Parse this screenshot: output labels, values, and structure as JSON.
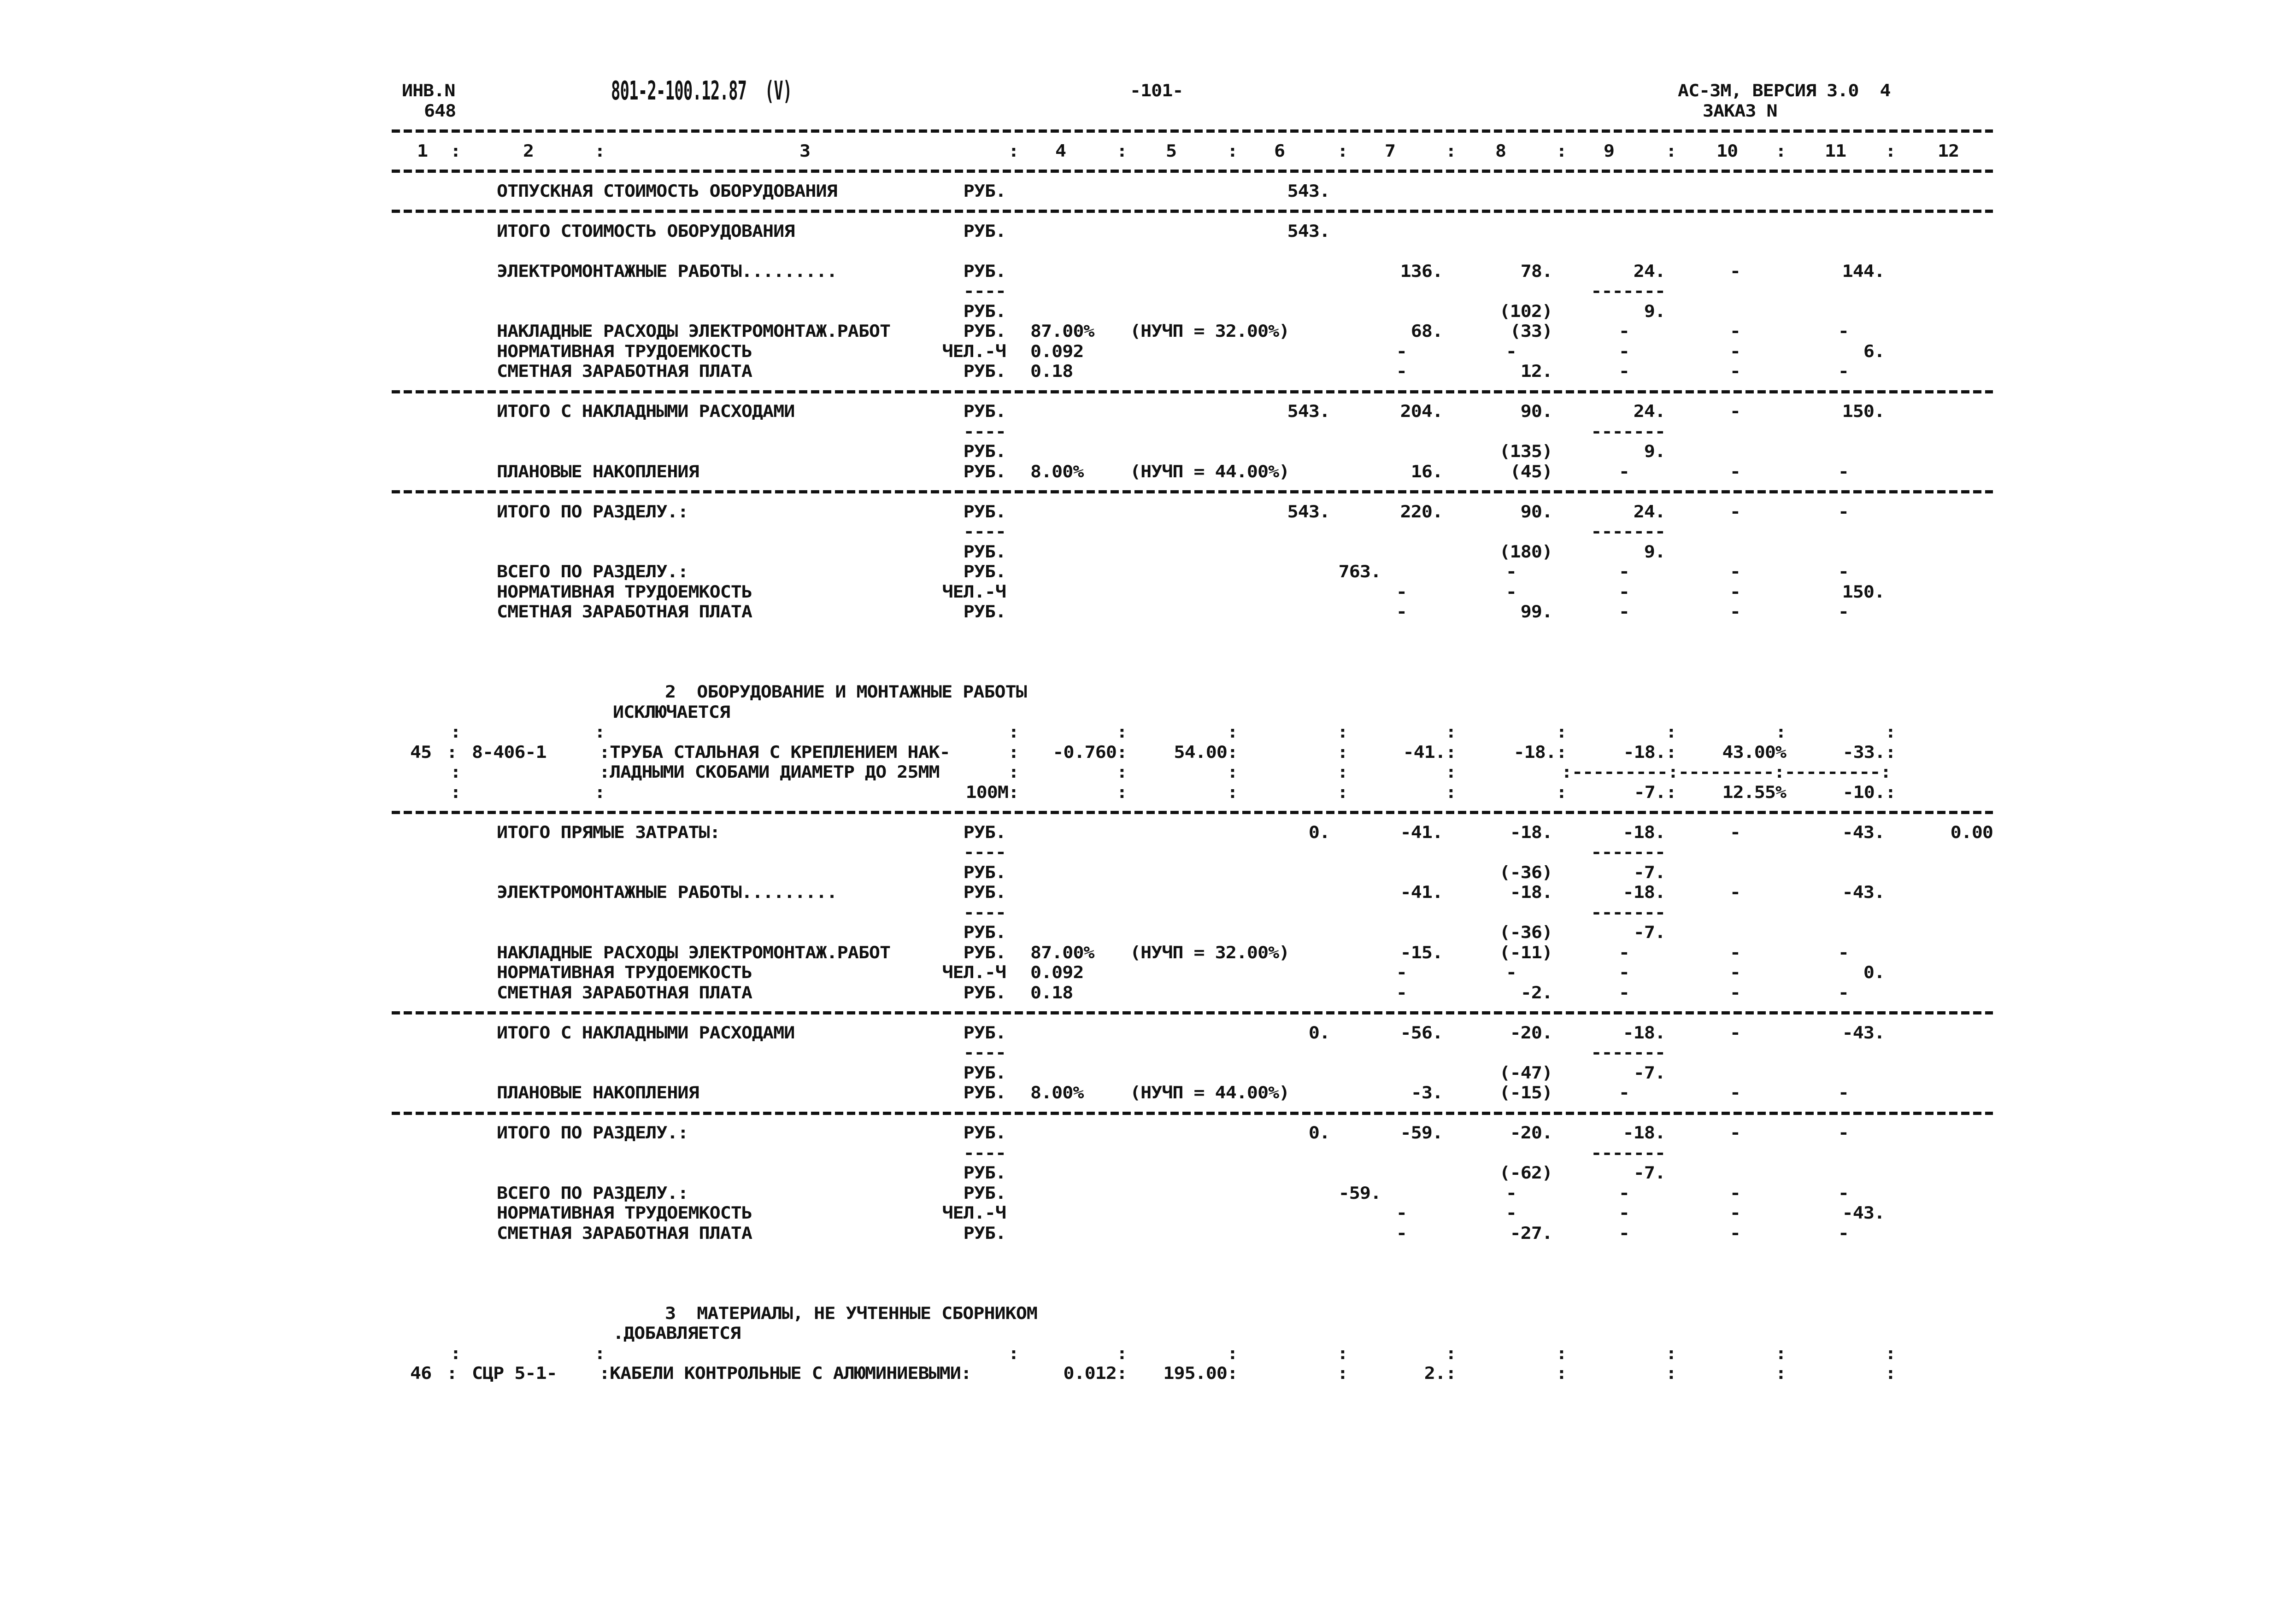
{
  "document": {
    "rows": [
      {
        "c": {
          "hinv": "ИНВ.N",
          "hdoc": "801-2-100.12.87  (V)",
          "hpage": "-101-",
          "hver": "АС-3М, ВЕРСИЯ 3.0  4"
        }
      },
      {
        "c": {
          "hinv2": "648",
          "horder": "ЗАКАЗ N"
        }
      },
      {
        "t": "dash"
      },
      {
        "c": {
          "h1": "1",
          "s1": ":",
          "h2": "2",
          "s2": ":",
          "h3": "3",
          "s3": ":",
          "h4": "4",
          "s4": ":",
          "h5": "5",
          "s5": ":",
          "h6": "6",
          "s6": ":",
          "h7": "7",
          "s7": ":",
          "h8": "8",
          "s8": ":",
          "h9": "9",
          "s9": ":",
          "h10": "10",
          "s10": ":",
          "h11": "11",
          "s11": ":",
          "h12": "12"
        }
      },
      {
        "t": "dash"
      },
      {
        "c": {
          "label": "ОТПУСКНАЯ СТОИМОСТЬ ОБОРУДОВАНИЯ",
          "unit": "РУБ.",
          "c6": "543."
        }
      },
      {
        "t": "dash"
      },
      {
        "c": {
          "label": "ИТОГО СТОИМОСТЬ ОБОРУДОВАНИЯ",
          "unit": "РУБ.",
          "c6": "543."
        }
      },
      {},
      {
        "c": {
          "label": "ЭЛЕКТРОМОНТАЖНЫЕ РАБОТЫ.........",
          "unit": "РУБ.",
          "c7": "136.",
          "c8": "78.",
          "c9": "24.",
          "c10": "-",
          "c11": "144."
        }
      },
      {
        "c": {
          "unit": "----",
          "c9": "-------"
        }
      },
      {
        "c": {
          "unit": "РУБ.",
          "c8": "(102)",
          "c9": "9."
        }
      },
      {
        "c": {
          "label": "НАКЛАДНЫЕ РАСХОДЫ ЭЛЕКТРОМОНТАЖ.РАБОТ",
          "unit": "РУБ.",
          "c4": "87.00%",
          "c5n": "(НУЧП = 32.00%)",
          "c7": "68.",
          "c8": "(33)",
          "c9": "-",
          "c10": "-",
          "c11": "-"
        }
      },
      {
        "c": {
          "label": "НОРМАТИВНАЯ ТРУДОЕМКОСТЬ",
          "unit": "ЧЕЛ.-Ч",
          "c4": "0.092",
          "c7": "-",
          "c8": "-",
          "c9": "-",
          "c10": "-",
          "c11": "6."
        }
      },
      {
        "c": {
          "label": "СМЕТНАЯ ЗАРАБОТНАЯ ПЛАТА",
          "unit": "РУБ.",
          "c4": "0.18",
          "c7": "-",
          "c8": "12.",
          "c9": "-",
          "c10": "-",
          "c11": "-"
        }
      },
      {
        "t": "dash"
      },
      {
        "c": {
          "label": "ИТОГО С НАКЛАДНЫМИ РАСХОДАМИ",
          "unit": "РУБ.",
          "c6": "543.",
          "c7": "204.",
          "c8": "90.",
          "c9": "24.",
          "c10": "-",
          "c11": "150."
        }
      },
      {
        "c": {
          "unit": "----",
          "c9": "-------"
        }
      },
      {
        "c": {
          "unit": "РУБ.",
          "c8": "(135)",
          "c9": "9."
        }
      },
      {
        "c": {
          "label": "ПЛАНОВЫЕ НАКОПЛЕНИЯ",
          "unit": "РУБ.",
          "c4": "8.00%",
          "c5n": "(НУЧП = 44.00%)",
          "c7": "16.",
          "c8": "(45)",
          "c9": "-",
          "c10": "-",
          "c11": "-"
        }
      },
      {
        "t": "dash"
      },
      {
        "c": {
          "label": "ИТОГО ПО РАЗДЕЛУ.:",
          "unit": "РУБ.",
          "c6": "543.",
          "c7": "220.",
          "c8": "90.",
          "c9": "24.",
          "c10": "-",
          "c11": "-"
        }
      },
      {
        "c": {
          "unit": "----",
          "c9": "-------"
        }
      },
      {
        "c": {
          "unit": "РУБ.",
          "c8": "(180)",
          "c9": "9."
        }
      },
      {
        "c": {
          "label": "ВСЕГО ПО РАЗДЕЛУ.:",
          "unit": "РУБ.",
          "c6b": "763.",
          "c8": "-",
          "c9": "-",
          "c10": "-",
          "c11": "-"
        }
      },
      {
        "c": {
          "label": "НОРМАТИВНАЯ ТРУДОЕМКОСТЬ",
          "unit": "ЧЕЛ.-Ч",
          "c7": "-",
          "c8": "-",
          "c9": "-",
          "c10": "-",
          "c11": "150."
        }
      },
      {
        "c": {
          "label": "СМЕТНАЯ ЗАРАБОТНАЯ ПЛАТА",
          "unit": "РУБ.",
          "c7": "-",
          "c8": "99.",
          "c9": "-",
          "c10": "-",
          "c11": "-"
        }
      },
      {},
      {},
      {},
      {
        "c": {
          "sec": "2  ОБОРУДОВАНИЕ И МОНТАЖНЫЕ РАБОТЫ"
        }
      },
      {
        "c": {
          "sub": "ИСКЛЮЧАЕТСЯ"
        }
      },
      {
        "c": {
          "s1": ":",
          "s2": ":",
          "s3": ":",
          "s4": ":",
          "s5": ":",
          "s6": ":",
          "s7": ":",
          "s8": ":",
          "s9": ":",
          "s10": ":",
          "s11": ":"
        }
      },
      {
        "c": {
          "num": "45",
          "s0": ":",
          "code": "8-406-1",
          "desc": ":ТРУБА СТАЛЬНАЯ С КРЕПЛЕНИЕМ НАК-",
          "s3": ":",
          "s4": "-0.760:",
          "s5": "54.00:",
          "s6": ":",
          "s7": "-41.:",
          "s8": "-18.:",
          "s9": "-18.:",
          "s10": "43.00%",
          "s11": "-33.:"
        }
      },
      {
        "c": {
          "s1": ":",
          "desc": ":ЛАДНЫМИ СКОБАМИ ДИАМЕТР ДО 25ММ",
          "s3": ":",
          "s4": ":",
          "s5": ":",
          "s6": ":",
          "s7": ":",
          "sepline": ":---------:---------:---------:"
        }
      },
      {
        "c": {
          "s1": ":",
          "s2": ":",
          "s3": "100М:",
          "s4": ":",
          "s5": ":",
          "s6": ":",
          "s7": ":",
          "s8": ":",
          "s9": "-7.:",
          "s10": "12.55%",
          "s11": "-10.:"
        }
      },
      {
        "t": "dash"
      },
      {
        "c": {
          "label": "ИТОГО ПРЯМЫЕ ЗАТРАТЫ:",
          "unit": "РУБ.",
          "c6": "0.",
          "c7": "-41.",
          "c8": "-18.",
          "c9": "-18.",
          "c10": "-",
          "c11": "-43.",
          "c12": "0.00"
        }
      },
      {
        "c": {
          "unit": "----",
          "c9": "-------"
        }
      },
      {
        "c": {
          "unit": "РУБ.",
          "c8": "(-36)",
          "c9": "-7."
        }
      },
      {
        "c": {
          "label": "ЭЛЕКТРОМОНТАЖНЫЕ РАБОТЫ.........",
          "unit": "РУБ.",
          "c7": "-41.",
          "c8": "-18.",
          "c9": "-18.",
          "c10": "-",
          "c11": "-43."
        }
      },
      {
        "c": {
          "unit": "----",
          "c9": "-------"
        }
      },
      {
        "c": {
          "unit": "РУБ.",
          "c8": "(-36)",
          "c9": "-7."
        }
      },
      {
        "c": {
          "label": "НАКЛАДНЫЕ РАСХОДЫ ЭЛЕКТРОМОНТАЖ.РАБОТ",
          "unit": "РУБ.",
          "c4": "87.00%",
          "c5n": "(НУЧП = 32.00%)",
          "c7": "-15.",
          "c8": "(-11)",
          "c9": "-",
          "c10": "-",
          "c11": "-"
        }
      },
      {
        "c": {
          "label": "НОРМАТИВНАЯ ТРУДОЕМКОСТЬ",
          "unit": "ЧЕЛ.-Ч",
          "c4": "0.092",
          "c7": "-",
          "c8": "-",
          "c9": "-",
          "c10": "-",
          "c11": "0."
        }
      },
      {
        "c": {
          "label": "СМЕТНАЯ ЗАРАБОТНАЯ ПЛАТА",
          "unit": "РУБ.",
          "c4": "0.18",
          "c7": "-",
          "c8": "-2.",
          "c9": "-",
          "c10": "-",
          "c11": "-"
        }
      },
      {
        "t": "dash"
      },
      {
        "c": {
          "label": "ИТОГО С НАКЛАДНЫМИ РАСХОДАМИ",
          "unit": "РУБ.",
          "c6": "0.",
          "c7": "-56.",
          "c8": "-20.",
          "c9": "-18.",
          "c10": "-",
          "c11": "-43."
        }
      },
      {
        "c": {
          "unit": "----",
          "c9": "-------"
        }
      },
      {
        "c": {
          "unit": "РУБ.",
          "c8": "(-47)",
          "c9": "-7."
        }
      },
      {
        "c": {
          "label": "ПЛАНОВЫЕ НАКОПЛЕНИЯ",
          "unit": "РУБ.",
          "c4": "8.00%",
          "c5n": "(НУЧП = 44.00%)",
          "c7": "-3.",
          "c8": "(-15)",
          "c9": "-",
          "c10": "-",
          "c11": "-"
        }
      },
      {
        "t": "dash"
      },
      {
        "c": {
          "label": "ИТОГО ПО РАЗДЕЛУ.:",
          "unit": "РУБ.",
          "c6": "0.",
          "c7": "-59.",
          "c8": "-20.",
          "c9": "-18.",
          "c10": "-",
          "c11": "-"
        }
      },
      {
        "c": {
          "unit": "----",
          "c9": "-------"
        }
      },
      {
        "c": {
          "unit": "РУБ.",
          "c8": "(-62)",
          "c9": "-7."
        }
      },
      {
        "c": {
          "label": "ВСЕГО ПО РАЗДЕЛУ.:",
          "unit": "РУБ.",
          "c6b": "-59.",
          "c8": "-",
          "c9": "-",
          "c10": "-",
          "c11": "-"
        }
      },
      {
        "c": {
          "label": "НОРМАТИВНАЯ ТРУДОЕМКОСТЬ",
          "unit": "ЧЕЛ.-Ч",
          "c7": "-",
          "c8": "-",
          "c9": "-",
          "c10": "-",
          "c11": "-43."
        }
      },
      {
        "c": {
          "label": "СМЕТНАЯ ЗАРАБОТНАЯ ПЛАТА",
          "unit": "РУБ.",
          "c7": "-",
          "c8": "-27.",
          "c9": "-",
          "c10": "-",
          "c11": "-"
        }
      },
      {},
      {},
      {},
      {
        "c": {
          "sec": "3  МАТЕРИАЛЫ, НЕ УЧТЕННЫЕ СБОРНИКОМ"
        }
      },
      {
        "c": {
          "sub": ".ДОБАВЛЯЕТСЯ"
        }
      },
      {
        "c": {
          "s1": ":",
          "s2": ":",
          "s3": ":",
          "s4": ":",
          "s5": ":",
          "s6": ":",
          "s7": ":",
          "s8": ":",
          "s9": ":",
          "s10": ":",
          "s11": ":"
        }
      },
      {
        "c": {
          "num": "46",
          "s0": ":",
          "code": "СЦР 5-1-",
          "desc": ":КАБЕЛИ КОНТРОЛЬНЫЕ С АЛЮМИНИЕВЫМИ:",
          "s4": "0.012:",
          "s5": "195.00:",
          "s6": ":",
          "s7": "2.:",
          "s8": ":",
          "s9": ":",
          "s10": ":",
          "s11": ":"
        }
      }
    ]
  }
}
